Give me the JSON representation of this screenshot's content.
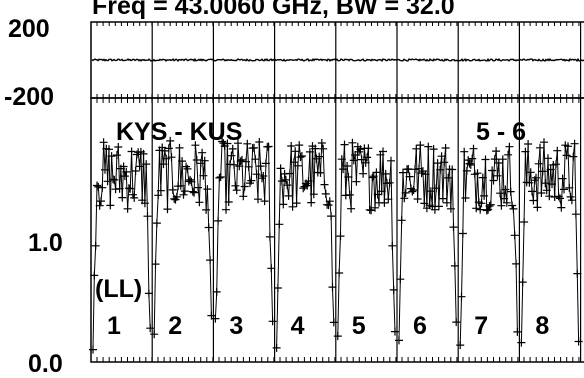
{
  "chart_data": [
    {
      "type": "scatter",
      "panel": "phase",
      "title": "Freq = 43.0060 GHz, BW = 32.0",
      "ytick_labels": [
        "200",
        "-200"
      ],
      "ylim": [
        -200,
        200
      ],
      "phase_level": 0,
      "phase_jitter": 5,
      "samples_per_scan": 44
    },
    {
      "type": "scatter",
      "panel": "amplitude",
      "ytick_labels": [
        "1.0",
        "0.0"
      ],
      "ylim": [
        0.0,
        1.7
      ],
      "baseline_amplitude": 1.2,
      "dip_amplitude": 0.2,
      "annotations": [
        "KYS - KUS",
        "5 - 6",
        "(LL)"
      ],
      "scan_labels": [
        "1",
        "2",
        "3",
        "4",
        "5",
        "6",
        "7",
        "8"
      ]
    }
  ]
}
